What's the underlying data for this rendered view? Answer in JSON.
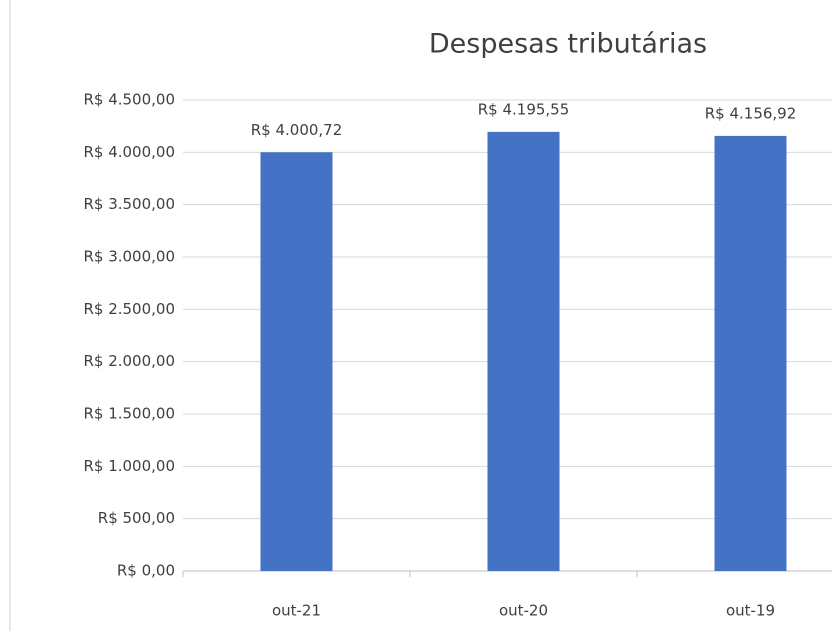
{
  "chart_data": {
    "type": "bar",
    "title": "Despesas tributárias",
    "categories": [
      "out-21",
      "out-20",
      "out-19"
    ],
    "values": [
      4000.72,
      4195.55,
      4156.92
    ],
    "value_labels": [
      "R$ 4.000,72",
      "R$ 4.195,55",
      "R$ 4.156,92"
    ],
    "color": "#4472c4",
    "ylim": [
      0,
      4500
    ],
    "yticks": [
      {
        "value": 0,
        "label": "R$ 0,00"
      },
      {
        "value": 500,
        "label": "R$ 500,00"
      },
      {
        "value": 1000,
        "label": "R$ 1.000,00"
      },
      {
        "value": 1500,
        "label": "R$ 1.500,00"
      },
      {
        "value": 2000,
        "label": "R$ 2.000,00"
      },
      {
        "value": 2500,
        "label": "R$ 2.500,00"
      },
      {
        "value": 3000,
        "label": "R$ 3.000,00"
      },
      {
        "value": 3500,
        "label": "R$ 3.500,00"
      },
      {
        "value": 4000,
        "label": "R$ 4.000,00"
      },
      {
        "value": 4500,
        "label": "R$ 4.500,00"
      }
    ],
    "grid": true
  }
}
